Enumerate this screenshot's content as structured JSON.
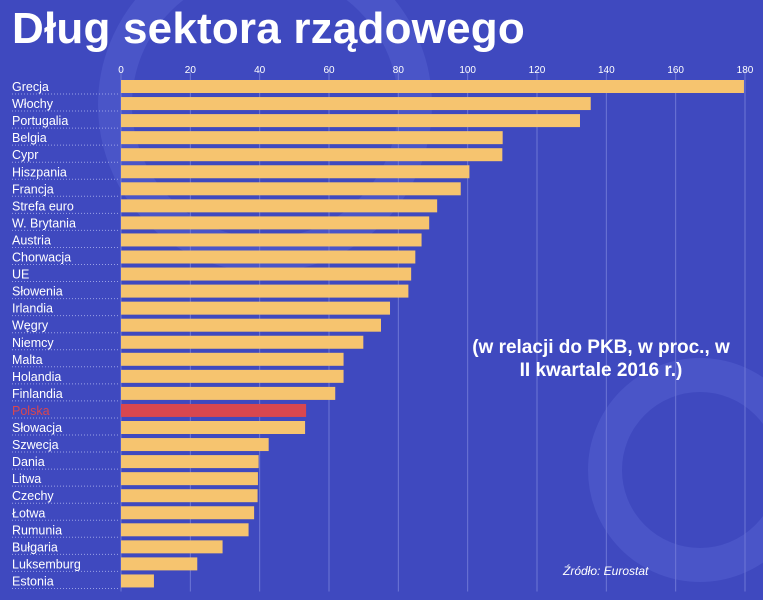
{
  "title": "Dług sektora rządowego",
  "note": "(w relacji do PKB, w proc., w II kwartale 2016 r.)",
  "source": "Źródło: Eurostat",
  "colors": {
    "background": "#3f49bf",
    "bar": "#f6c46f",
    "highlight": "#d8474f",
    "text": "#ffffff"
  },
  "chart_data": {
    "type": "bar",
    "orientation": "horizontal",
    "xlim": [
      0,
      180
    ],
    "ticks": [
      0,
      20,
      40,
      60,
      80,
      100,
      120,
      140,
      160,
      180
    ],
    "grid": true,
    "highlight": "Polska",
    "categories": [
      "Grecja",
      "Włochy",
      "Portugalia",
      "Belgia",
      "Cypr",
      "Hiszpania",
      "Francja",
      "Strefa euro",
      "W. Brytania",
      "Austria",
      "Chorwacja",
      "UE",
      "Słowenia",
      "Irlandia",
      "Węgry",
      "Niemcy",
      "Malta",
      "Holandia",
      "Finlandia",
      "Polska",
      "Słowacja",
      "Szwecja",
      "Dania",
      "Litwa",
      "Czechy",
      "Łotwa",
      "Rumunia",
      "Bułgaria",
      "Luksemburg",
      "Estonia"
    ],
    "values": [
      179.7,
      135.5,
      132.4,
      110.1,
      110.0,
      100.5,
      98.0,
      91.2,
      88.9,
      86.7,
      84.9,
      83.7,
      82.9,
      77.6,
      75.0,
      69.9,
      64.2,
      64.2,
      61.8,
      53.4,
      53.1,
      42.6,
      39.7,
      39.5,
      39.4,
      38.4,
      36.8,
      29.3,
      22.0,
      9.5
    ]
  }
}
